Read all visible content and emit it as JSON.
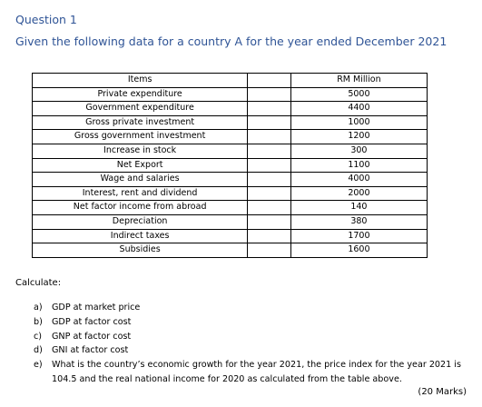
{
  "question": {
    "number": "Question 1",
    "subtitle": "Given the  following data for a country A for the year ended December 2021"
  },
  "table": {
    "headers": {
      "item": "Items",
      "value": "RM Million"
    },
    "rows": [
      {
        "item": "Private expenditure",
        "value": "5000"
      },
      {
        "item": "Government expenditure",
        "value": "4400"
      },
      {
        "item": "Gross private investment",
        "value": "1000"
      },
      {
        "item": "Gross government investment",
        "value": "1200"
      },
      {
        "item": "Increase in stock",
        "value": "300"
      },
      {
        "item": "Net Export",
        "value": "1100"
      },
      {
        "item": "Wage and salaries",
        "value": "4000"
      },
      {
        "item": "Interest, rent and dividend",
        "value": "2000"
      },
      {
        "item": "Net factor income from abroad",
        "value": "140"
      },
      {
        "item": "Depreciation",
        "value": "380"
      },
      {
        "item": "Indirect taxes",
        "value": "1700"
      },
      {
        "item": "Subsidies",
        "value": "1600"
      }
    ]
  },
  "calculate_label": "Calculate:",
  "parts": [
    {
      "letter": "a)",
      "text": "GDP at market price"
    },
    {
      "letter": "b)",
      "text": "GDP at factor cost"
    },
    {
      "letter": "c)",
      "text": "GNP at factor cost"
    },
    {
      "letter": "d)",
      "text": "GNI at factor cost"
    },
    {
      "letter": "e)",
      "text": "What is the country’s economic growth for the year 2021, the price index for the year 2021 is 104.5 and the real national income  for 2020 as calculated from the table above."
    }
  ],
  "marks": "(20 Marks)"
}
